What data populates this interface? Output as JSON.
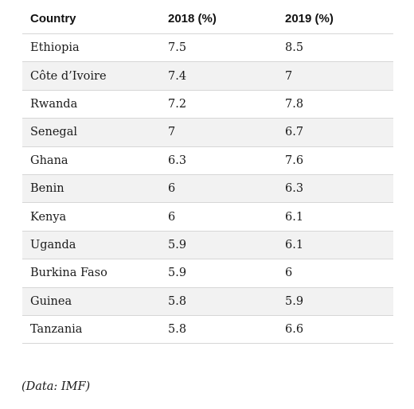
{
  "table": {
    "headers": [
      "Country",
      "2018 (%)",
      "2019 (%)"
    ],
    "rows": [
      [
        "Ethiopia",
        "7.5",
        "8.5"
      ],
      [
        "Côte d’Ivoire",
        "7.4",
        "7"
      ],
      [
        "Rwanda",
        "7.2",
        "7.8"
      ],
      [
        "Senegal",
        "7",
        "6.7"
      ],
      [
        "Ghana",
        "6.3",
        "7.6"
      ],
      [
        "Benin",
        "6",
        "6.3"
      ],
      [
        "Kenya",
        "6",
        "6.1"
      ],
      [
        "Uganda",
        "5.9",
        "6.1"
      ],
      [
        "Burkina Faso",
        "5.9",
        "6"
      ],
      [
        "Guinea",
        "5.8",
        "5.9"
      ],
      [
        "Tanzania",
        "5.8",
        "6.6"
      ]
    ]
  },
  "source_note": "(Data: IMF)"
}
